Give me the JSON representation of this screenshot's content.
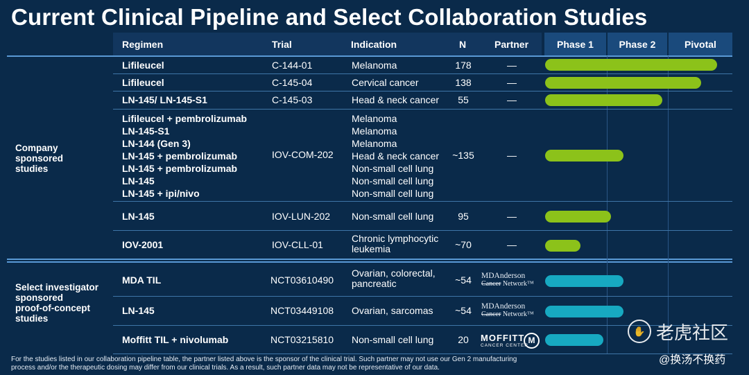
{
  "title": "Current Clinical Pipeline and Select Collaboration Studies",
  "headers": {
    "regimen": "Regimen",
    "trial": "Trial",
    "indication": "Indication",
    "n": "N",
    "partner": "Partner",
    "phase1": "Phase 1",
    "phase2": "Phase 2",
    "pivotal": "Pivotal"
  },
  "groups": {
    "company": [
      "Company",
      "sponsored",
      "studies"
    ],
    "investigator": [
      "Select investigator",
      "sponsored",
      "proof-of-concept",
      "studies"
    ]
  },
  "rows": [
    {
      "regimen": [
        "Lifileucel"
      ],
      "trial": "C-144-01",
      "indication": [
        "Melanoma"
      ],
      "n": "178",
      "partner": "—",
      "progress": 0.97,
      "color": "#8cc21a"
    },
    {
      "regimen": [
        "Lifileucel"
      ],
      "trial": "C-145-04",
      "indication": [
        "Cervical cancer"
      ],
      "n": "138",
      "partner": "—",
      "progress": 0.88,
      "color": "#8cc21a"
    },
    {
      "regimen": [
        "LN-145/ LN-145-S1"
      ],
      "trial": "C-145-03",
      "indication": [
        "Head & neck cancer"
      ],
      "n": "55",
      "partner": "—",
      "progress": 0.66,
      "color": "#8cc21a"
    },
    {
      "regimen": [
        "Lifileucel + pembrolizumab",
        "LN-145-S1",
        "LN-144 (Gen 3)",
        "LN-145 + pembrolizumab",
        "LN-145 + pembrolizumab",
        "LN-145",
        "LN-145 + ipi/nivo"
      ],
      "trial": "IOV-COM-202",
      "indication": [
        "Melanoma",
        "Melanoma",
        "Melanoma",
        "Head & neck cancer",
        "Non-small cell lung",
        "Non-small cell lung",
        "Non-small cell lung"
      ],
      "n": "~135",
      "partner": "—",
      "progress": 0.44,
      "color": "#8cc21a"
    },
    {
      "regimen": [
        "LN-145"
      ],
      "trial": "IOV-LUN-202",
      "indication": [
        "Non-small cell lung"
      ],
      "n": "95",
      "partner": "—",
      "progress": 0.37,
      "color": "#8cc21a"
    },
    {
      "regimen": [
        "IOV-2001"
      ],
      "trial": "IOV-CLL-01",
      "indication": [
        "Chronic lymphocytic",
        "leukemia"
      ],
      "n": "~70",
      "partner": "—",
      "progress": 0.2,
      "color": "#8cc21a"
    },
    {
      "regimen": [
        "MDA TIL"
      ],
      "trial": "NCT03610490",
      "indication": [
        "Ovarian, colorectal,",
        "pancreatic"
      ],
      "n": "~54",
      "partner_logo": [
        "MDAnderson",
        "Cancer",
        "Network"
      ],
      "progress": 0.44,
      "color": "#17a9c1"
    },
    {
      "regimen": [
        "LN-145"
      ],
      "trial": "NCT03449108",
      "indication": [
        "Ovarian, sarcomas"
      ],
      "n": "~54",
      "partner_logo": [
        "MDAnderson",
        "Cancer",
        "Network"
      ],
      "progress": 0.44,
      "color": "#17a9c1"
    },
    {
      "regimen": [
        "Moffitt TIL + nivolumab"
      ],
      "trial": "NCT03215810",
      "indication": [
        "Non-small cell lung"
      ],
      "n": "20",
      "partner_logo": [
        "MOFFITT",
        "CANCER CENTER"
      ],
      "progress": 0.33,
      "color": "#17a9c1"
    }
  ],
  "footnote": "For the studies listed in our collaboration pipeline table, the partner listed above is the sponsor of the clinical trial. Such partner may not use our Gen 2 manufacturing process and/or the therapeutic dosing may differ from our clinical trials. As a result, such partner data may not be representative of our data.",
  "watermark": {
    "brand": "老虎社区",
    "user": "@换汤不换药"
  }
}
